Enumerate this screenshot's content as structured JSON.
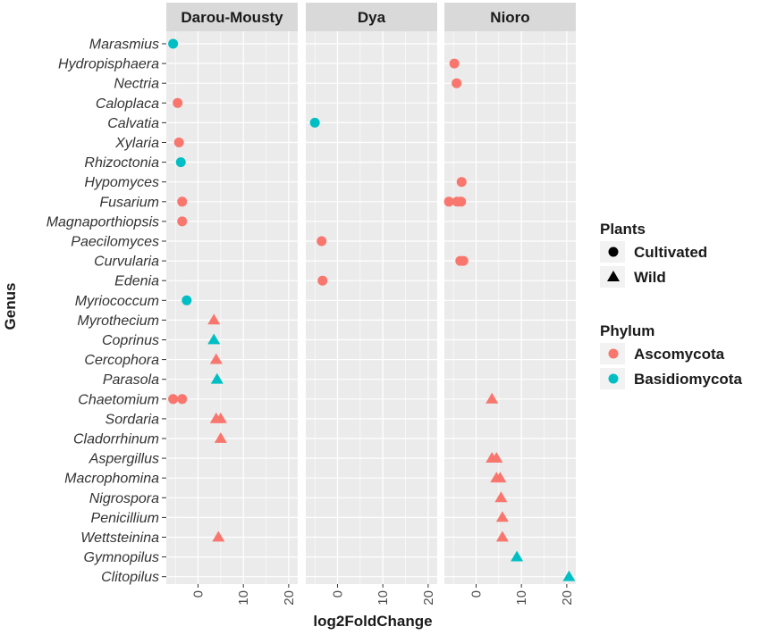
{
  "chart_data": {
    "type": "scatter",
    "xlabel": "log2FoldChange",
    "ylabel": "Genus",
    "xlim": [
      -7,
      22
    ],
    "xticks": [
      0,
      10,
      20
    ],
    "grid": true,
    "legend_position": "right",
    "panels": [
      "Darou-Mousty",
      "Dya",
      "Nioro"
    ],
    "genera": [
      "Marasmius",
      "Hydropisphaera",
      "Nectria",
      "Caloplaca",
      "Calvatia",
      "Xylaria",
      "Rhizoctonia",
      "Hypomyces",
      "Fusarium",
      "Magnaporthiopsis",
      "Paecilomyces",
      "Curvularia",
      "Edenia",
      "Myriococcum",
      "Myrothecium",
      "Coprinus",
      "Cercophora",
      "Parasola",
      "Chaetomium",
      "Sordaria",
      "Cladorrhinum",
      "Aspergillus",
      "Macrophomina",
      "Nigrospora",
      "Penicillium",
      "Wettsteinina",
      "Gymnopilus",
      "Clitopilus"
    ],
    "legends": [
      {
        "title": "Plants",
        "kind": "shape",
        "entries": [
          {
            "label": "Cultivated",
            "shape": "circle"
          },
          {
            "label": "Wild",
            "shape": "triangle"
          }
        ]
      },
      {
        "title": "Phylum",
        "kind": "color",
        "entries": [
          {
            "label": "Ascomycota",
            "color": "#F8766D"
          },
          {
            "label": "Basidiomycota",
            "color": "#00BFC4"
          }
        ]
      }
    ],
    "colors": {
      "Ascomycota": "#F8766D",
      "Basidiomycota": "#00BFC4"
    },
    "points": [
      {
        "panel": "Darou-Mousty",
        "genus": "Marasmius",
        "x": -5.5,
        "plants": "Cultivated",
        "phylum": "Basidiomycota"
      },
      {
        "panel": "Darou-Mousty",
        "genus": "Caloplaca",
        "x": -4.5,
        "plants": "Cultivated",
        "phylum": "Ascomycota"
      },
      {
        "panel": "Darou-Mousty",
        "genus": "Xylaria",
        "x": -4.2,
        "plants": "Cultivated",
        "phylum": "Ascomycota"
      },
      {
        "panel": "Darou-Mousty",
        "genus": "Rhizoctonia",
        "x": -3.8,
        "plants": "Cultivated",
        "phylum": "Basidiomycota"
      },
      {
        "panel": "Darou-Mousty",
        "genus": "Fusarium",
        "x": -3.5,
        "plants": "Cultivated",
        "phylum": "Ascomycota"
      },
      {
        "panel": "Darou-Mousty",
        "genus": "Magnaporthiopsis",
        "x": -3.5,
        "plants": "Cultivated",
        "phylum": "Ascomycota"
      },
      {
        "panel": "Darou-Mousty",
        "genus": "Myriococcum",
        "x": -2.5,
        "plants": "Cultivated",
        "phylum": "Basidiomycota"
      },
      {
        "panel": "Darou-Mousty",
        "genus": "Myrothecium",
        "x": 3.5,
        "plants": "Wild",
        "phylum": "Ascomycota"
      },
      {
        "panel": "Darou-Mousty",
        "genus": "Coprinus",
        "x": 3.5,
        "plants": "Wild",
        "phylum": "Basidiomycota"
      },
      {
        "panel": "Darou-Mousty",
        "genus": "Cercophora",
        "x": 4.0,
        "plants": "Wild",
        "phylum": "Ascomycota"
      },
      {
        "panel": "Darou-Mousty",
        "genus": "Parasola",
        "x": 4.2,
        "plants": "Wild",
        "phylum": "Basidiomycota"
      },
      {
        "panel": "Darou-Mousty",
        "genus": "Chaetomium",
        "x": -5.5,
        "plants": "Cultivated",
        "phylum": "Ascomycota"
      },
      {
        "panel": "Darou-Mousty",
        "genus": "Chaetomium",
        "x": -3.5,
        "plants": "Cultivated",
        "phylum": "Ascomycota"
      },
      {
        "panel": "Darou-Mousty",
        "genus": "Sordaria",
        "x": 4.0,
        "plants": "Wild",
        "phylum": "Ascomycota"
      },
      {
        "panel": "Darou-Mousty",
        "genus": "Sordaria",
        "x": 5.0,
        "plants": "Wild",
        "phylum": "Ascomycota"
      },
      {
        "panel": "Darou-Mousty",
        "genus": "Cladorrhinum",
        "x": 5.0,
        "plants": "Wild",
        "phylum": "Ascomycota"
      },
      {
        "panel": "Darou-Mousty",
        "genus": "Wettsteinina",
        "x": 4.5,
        "plants": "Wild",
        "phylum": "Ascomycota"
      },
      {
        "panel": "Dya",
        "genus": "Calvatia",
        "x": -5.0,
        "plants": "Cultivated",
        "phylum": "Basidiomycota"
      },
      {
        "panel": "Dya",
        "genus": "Paecilomyces",
        "x": -3.5,
        "plants": "Cultivated",
        "phylum": "Ascomycota"
      },
      {
        "panel": "Dya",
        "genus": "Edenia",
        "x": -3.3,
        "plants": "Cultivated",
        "phylum": "Ascomycota"
      },
      {
        "panel": "Nioro",
        "genus": "Hydropisphaera",
        "x": -4.8,
        "plants": "Cultivated",
        "phylum": "Ascomycota"
      },
      {
        "panel": "Nioro",
        "genus": "Nectria",
        "x": -4.3,
        "plants": "Cultivated",
        "phylum": "Ascomycota"
      },
      {
        "panel": "Nioro",
        "genus": "Hypomyces",
        "x": -3.2,
        "plants": "Cultivated",
        "phylum": "Ascomycota"
      },
      {
        "panel": "Nioro",
        "genus": "Fusarium",
        "x": -6.0,
        "plants": "Cultivated",
        "phylum": "Ascomycota"
      },
      {
        "panel": "Nioro",
        "genus": "Fusarium",
        "x": -4.2,
        "plants": "Cultivated",
        "phylum": "Ascomycota"
      },
      {
        "panel": "Nioro",
        "genus": "Fusarium",
        "x": -3.3,
        "plants": "Cultivated",
        "phylum": "Ascomycota"
      },
      {
        "panel": "Nioro",
        "genus": "Curvularia",
        "x": -3.5,
        "plants": "Cultivated",
        "phylum": "Ascomycota"
      },
      {
        "panel": "Nioro",
        "genus": "Curvularia",
        "x": -2.8,
        "plants": "Cultivated",
        "phylum": "Ascomycota"
      },
      {
        "panel": "Nioro",
        "genus": "Chaetomium",
        "x": 3.5,
        "plants": "Wild",
        "phylum": "Ascomycota"
      },
      {
        "panel": "Nioro",
        "genus": "Aspergillus",
        "x": 3.5,
        "plants": "Wild",
        "phylum": "Ascomycota"
      },
      {
        "panel": "Nioro",
        "genus": "Aspergillus",
        "x": 4.5,
        "plants": "Wild",
        "phylum": "Ascomycota"
      },
      {
        "panel": "Nioro",
        "genus": "Macrophomina",
        "x": 4.5,
        "plants": "Wild",
        "phylum": "Ascomycota"
      },
      {
        "panel": "Nioro",
        "genus": "Macrophomina",
        "x": 5.3,
        "plants": "Wild",
        "phylum": "Ascomycota"
      },
      {
        "panel": "Nioro",
        "genus": "Nigrospora",
        "x": 5.5,
        "plants": "Wild",
        "phylum": "Ascomycota"
      },
      {
        "panel": "Nioro",
        "genus": "Penicillium",
        "x": 5.8,
        "plants": "Wild",
        "phylum": "Ascomycota"
      },
      {
        "panel": "Nioro",
        "genus": "Wettsteinina",
        "x": 5.8,
        "plants": "Wild",
        "phylum": "Ascomycota"
      },
      {
        "panel": "Nioro",
        "genus": "Gymnopilus",
        "x": 9.0,
        "plants": "Wild",
        "phylum": "Basidiomycota"
      },
      {
        "panel": "Nioro",
        "genus": "Clitopilus",
        "x": 20.5,
        "plants": "Wild",
        "phylum": "Basidiomycota"
      }
    ]
  }
}
